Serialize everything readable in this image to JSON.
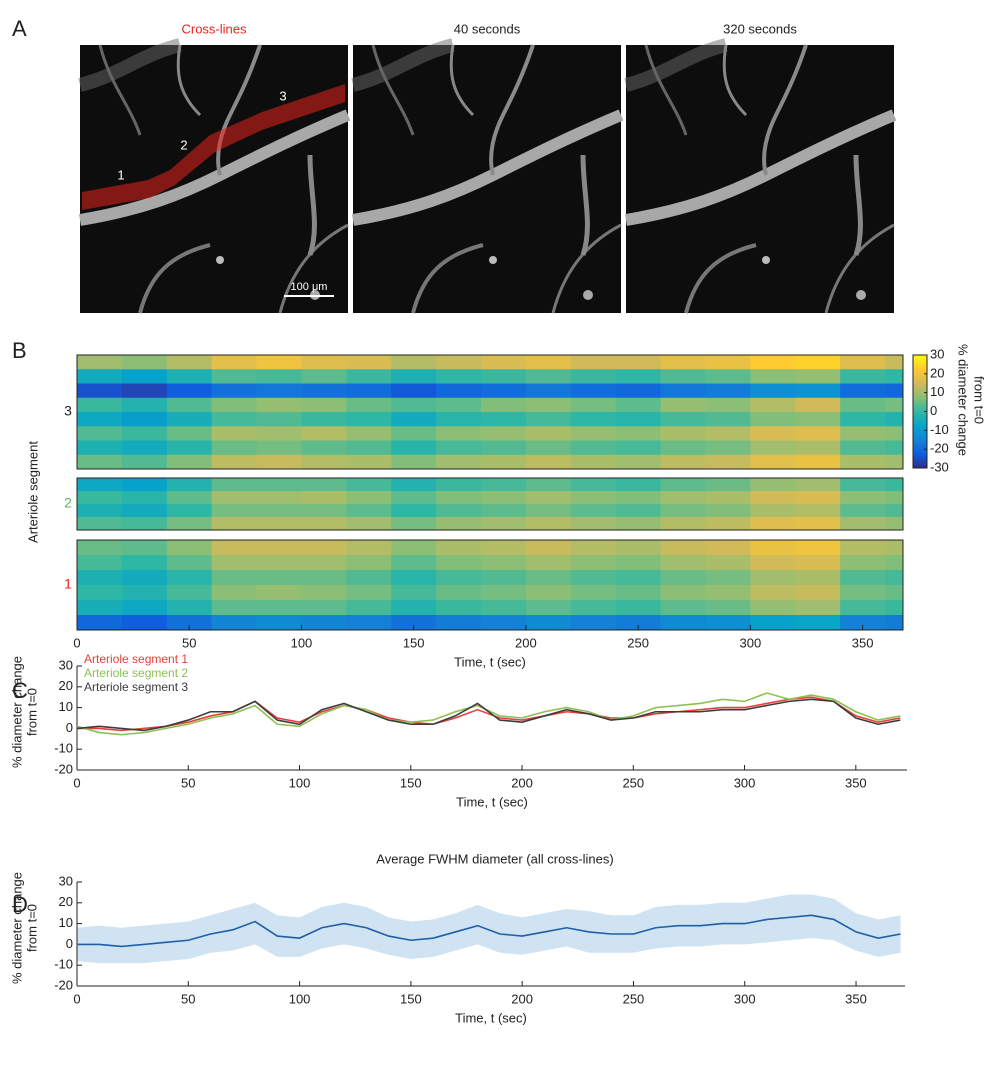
{
  "panel_labels": [
    "A",
    "B",
    "C",
    "D"
  ],
  "images": {
    "titles": [
      "Cross-lines",
      "40 seconds",
      "320 seconds"
    ],
    "title_colors": [
      "#e8231c",
      "#222222",
      "#222222"
    ],
    "segment_labels": [
      "1",
      "2",
      "3"
    ],
    "scale_bar": "100 μm"
  },
  "chart_data": [
    {
      "type": "heatmap",
      "ylabel": "Arteriole segment",
      "xlabel": "Time, t (sec)",
      "x_edges": [
        0,
        20,
        40,
        60,
        80,
        100,
        120,
        140,
        160,
        180,
        200,
        220,
        240,
        260,
        280,
        300,
        320,
        340,
        360,
        368
      ],
      "xlim": [
        0,
        368
      ],
      "xticks": [
        0,
        50,
        100,
        150,
        200,
        250,
        300,
        350
      ],
      "zlim": [
        -30,
        30
      ],
      "zticks": [
        -30,
        -20,
        -10,
        0,
        10,
        20,
        30
      ],
      "colorbar_label": [
        "% diameter change",
        "from t=0"
      ],
      "colormap": [
        "#352a87",
        "#0f5cdd",
        "#1481d6",
        "#06a4ca",
        "#2eb7a4",
        "#87bf77",
        "#d1bb59",
        "#fec832",
        "#f9fb0e"
      ],
      "segments": [
        {
          "name": "3",
          "color": "#222222",
          "rows": [
            [
              10,
              8,
              12,
              18,
              20,
              17,
              16,
              12,
              14,
              16,
              18,
              15,
              15,
              18,
              19,
              23,
              24,
              17,
              14
            ],
            [
              -5,
              -8,
              -3,
              3,
              2,
              4,
              1,
              -3,
              0,
              1,
              3,
              1,
              0,
              3,
              4,
              8,
              9,
              1,
              0
            ],
            [
              -24,
              -26,
              -22,
              -18,
              -17,
              -18,
              -19,
              -23,
              -20,
              -19,
              -17,
              -19,
              -20,
              -17,
              -16,
              -12,
              -11,
              -19,
              -20
            ],
            [
              1,
              -2,
              3,
              7,
              9,
              8,
              5,
              3,
              4,
              7,
              8,
              6,
              4,
              9,
              8,
              12,
              15,
              5,
              6
            ],
            [
              -6,
              -9,
              -4,
              2,
              3,
              1,
              0,
              -5,
              -1,
              0,
              2,
              0,
              -1,
              2,
              3,
              7,
              8,
              0,
              -2
            ],
            [
              3,
              1,
              5,
              11,
              10,
              12,
              9,
              5,
              8,
              9,
              11,
              9,
              8,
              11,
              12,
              16,
              17,
              9,
              8
            ],
            [
              -3,
              -5,
              -1,
              5,
              6,
              4,
              3,
              -1,
              2,
              3,
              5,
              3,
              2,
              5,
              6,
              10,
              11,
              3,
              2
            ],
            [
              5,
              3,
              7,
              13,
              14,
              12,
              11,
              7,
              10,
              11,
              13,
              11,
              10,
              13,
              14,
              18,
              19,
              11,
              10
            ]
          ]
        },
        {
          "name": "2",
          "color": "#5cb85c",
          "rows": [
            [
              -6,
              -8,
              -2,
              4,
              4,
              4,
              2,
              -2,
              1,
              2,
              4,
              2,
              1,
              4,
              5,
              9,
              10,
              2,
              1
            ],
            [
              1,
              -1,
              4,
              10,
              10,
              11,
              8,
              4,
              7,
              8,
              10,
              8,
              7,
              10,
              11,
              15,
              16,
              8,
              7
            ],
            [
              -3,
              -5,
              0,
              6,
              6,
              6,
              4,
              0,
              3,
              4,
              6,
              4,
              3,
              6,
              7,
              11,
              12,
              4,
              3
            ],
            [
              3,
              2,
              6,
              12,
              12,
              12,
              10,
              6,
              9,
              10,
              12,
              10,
              9,
              12,
              13,
              17,
              18,
              10,
              9
            ]
          ]
        },
        {
          "name": "1",
          "color": "#e8231c",
          "rows": [
            [
              5,
              4,
              8,
              14,
              14,
              14,
              12,
              8,
              11,
              12,
              14,
              12,
              11,
              14,
              15,
              19,
              20,
              12,
              11
            ],
            [
              2,
              0,
              4,
              10,
              10,
              10,
              8,
              4,
              7,
              8,
              10,
              8,
              7,
              10,
              11,
              15,
              16,
              8,
              7
            ],
            [
              -3,
              -5,
              -1,
              5,
              5,
              5,
              3,
              -1,
              2,
              3,
              5,
              3,
              2,
              5,
              6,
              10,
              11,
              3,
              2
            ],
            [
              0,
              -2,
              2,
              8,
              9,
              8,
              6,
              2,
              5,
              6,
              8,
              6,
              5,
              8,
              9,
              13,
              14,
              6,
              5
            ],
            [
              -4,
              -6,
              -2,
              4,
              4,
              4,
              2,
              -2,
              1,
              2,
              4,
              2,
              1,
              4,
              5,
              9,
              10,
              2,
              1
            ],
            [
              -20,
              -22,
              -18,
              -14,
              -13,
              -14,
              -15,
              -18,
              -16,
              -15,
              -13,
              -15,
              -16,
              -13,
              -12,
              -8,
              -7,
              -15,
              -16
            ]
          ]
        }
      ]
    },
    {
      "type": "line",
      "xlabel": "Time, t (sec)",
      "ylabel": [
        "% diameter change",
        "from t=0"
      ],
      "x": [
        0,
        10,
        20,
        30,
        40,
        50,
        60,
        70,
        80,
        90,
        100,
        110,
        120,
        130,
        140,
        150,
        160,
        170,
        180,
        190,
        200,
        210,
        220,
        230,
        240,
        250,
        260,
        270,
        280,
        290,
        300,
        310,
        320,
        330,
        340,
        350,
        360,
        370
      ],
      "xlim": [
        0,
        373
      ],
      "xticks": [
        0,
        50,
        100,
        150,
        200,
        250,
        300,
        350
      ],
      "ylim": [
        -20,
        30
      ],
      "yticks": [
        -20,
        -10,
        0,
        10,
        20,
        30
      ],
      "series": [
        {
          "name": "Arteriole segment 1",
          "color": "#e8403a",
          "values": [
            0,
            0,
            -1,
            0,
            1,
            3,
            6,
            8,
            13,
            5,
            3,
            8,
            11,
            9,
            5,
            3,
            2,
            5,
            9,
            5,
            4,
            6,
            8,
            7,
            5,
            5,
            7,
            8,
            9,
            10,
            10,
            12,
            14,
            15,
            13,
            6,
            3,
            5
          ]
        },
        {
          "name": "Arteriole segment 2",
          "color": "#8cc152",
          "values": [
            1,
            -2,
            -3,
            -2,
            0,
            2,
            5,
            7,
            11,
            2,
            1,
            7,
            11,
            9,
            4,
            3,
            4,
            8,
            11,
            6,
            5,
            8,
            10,
            8,
            4,
            6,
            10,
            11,
            12,
            14,
            13,
            17,
            14,
            16,
            14,
            8,
            4,
            6
          ]
        },
        {
          "name": "Arteriole segment 3",
          "color": "#3d3d3d",
          "values": [
            0,
            1,
            0,
            -1,
            1,
            4,
            8,
            8,
            13,
            4,
            2,
            9,
            12,
            8,
            4,
            2,
            2,
            6,
            12,
            4,
            3,
            6,
            9,
            7,
            4,
            5,
            8,
            8,
            8,
            9,
            9,
            11,
            13,
            14,
            13,
            5,
            2,
            4
          ]
        }
      ]
    },
    {
      "type": "line",
      "title": "Average FWHM diameter (all cross-lines)",
      "xlabel": "Time, t (sec)",
      "ylabel": [
        "% diameter change",
        "from t=0"
      ],
      "x": [
        0,
        10,
        20,
        30,
        40,
        50,
        60,
        70,
        80,
        90,
        100,
        110,
        120,
        130,
        140,
        150,
        160,
        170,
        180,
        190,
        200,
        210,
        220,
        230,
        240,
        250,
        260,
        270,
        280,
        290,
        300,
        310,
        320,
        330,
        340,
        350,
        360,
        370
      ],
      "xlim": [
        0,
        372
      ],
      "xticks": [
        0,
        50,
        100,
        150,
        200,
        250,
        300,
        350
      ],
      "ylim": [
        -20,
        30
      ],
      "yticks": [
        -20,
        -10,
        0,
        10,
        20,
        30
      ],
      "band": {
        "color": "#cfe3f3",
        "lower": [
          -8,
          -9,
          -9,
          -9,
          -8,
          -7,
          -4,
          -3,
          0,
          -6,
          -6,
          -2,
          0,
          -2,
          -5,
          -7,
          -6,
          -3,
          0,
          -4,
          -5,
          -3,
          -1,
          -4,
          -4,
          -4,
          -2,
          -1,
          -1,
          0,
          0,
          1,
          2,
          3,
          2,
          -3,
          -6,
          -4
        ],
        "upper": [
          8,
          9,
          8,
          9,
          10,
          11,
          14,
          17,
          20,
          14,
          13,
          18,
          20,
          18,
          13,
          11,
          12,
          15,
          19,
          15,
          13,
          15,
          17,
          16,
          14,
          14,
          18,
          19,
          19,
          20,
          20,
          22,
          24,
          24,
          22,
          15,
          12,
          14
        ]
      },
      "series": [
        {
          "color": "#1f5fa8",
          "values": [
            0,
            0,
            -1,
            0,
            1,
            2,
            5,
            7,
            11,
            4,
            3,
            8,
            10,
            8,
            4,
            2,
            3,
            6,
            9,
            5,
            4,
            6,
            8,
            6,
            5,
            5,
            8,
            9,
            9,
            10,
            10,
            12,
            13,
            14,
            12,
            6,
            3,
            5
          ]
        }
      ]
    }
  ]
}
